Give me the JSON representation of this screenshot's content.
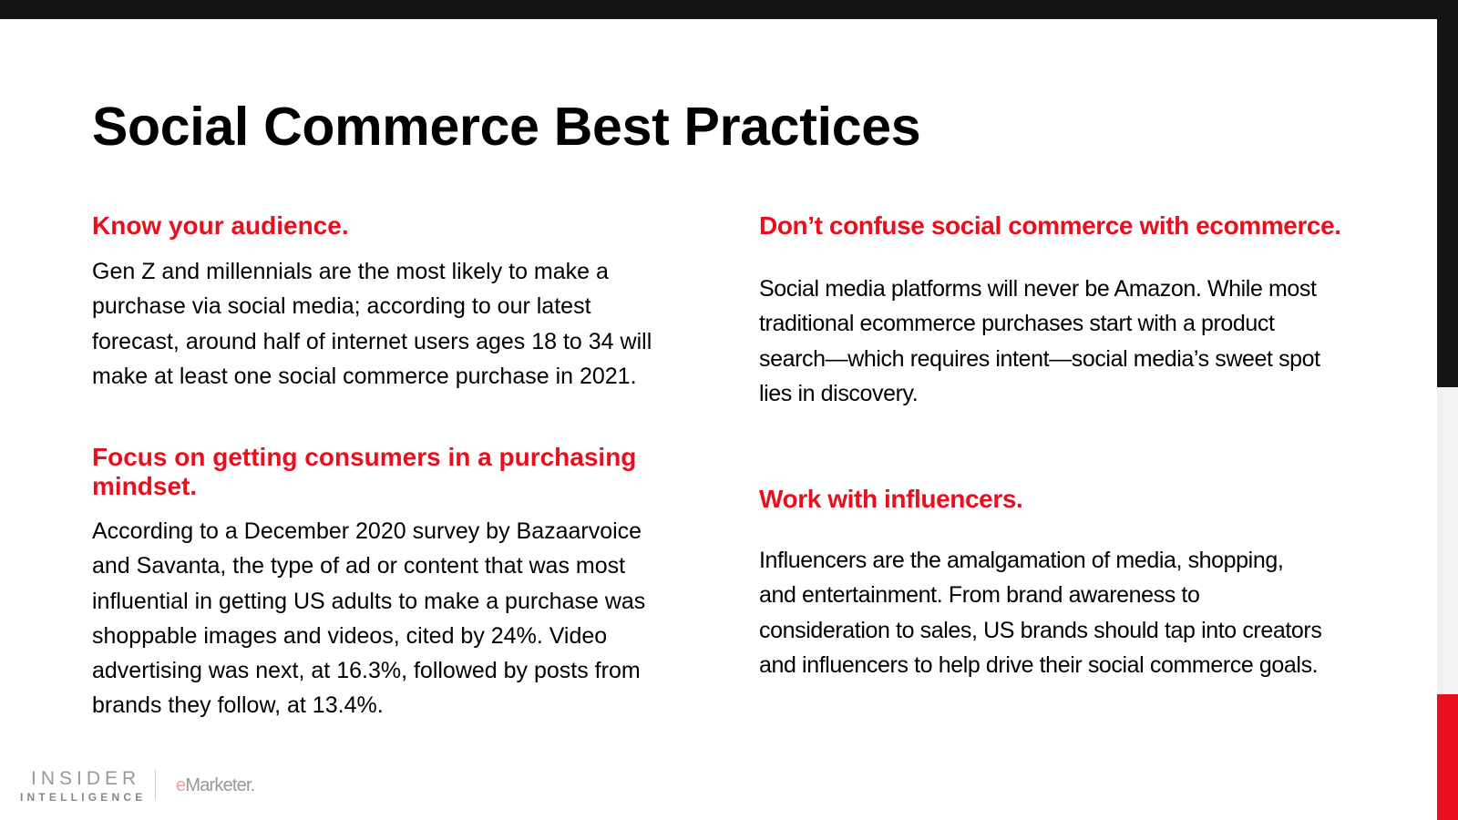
{
  "title": "Social Commerce Best Practices",
  "colors": {
    "accent": "#e8101e",
    "dark": "#141414"
  },
  "sections": [
    {
      "heading": [
        "Know your audience."
      ],
      "body": [
        "Gen Z and millennials are the most likely to make a",
        "purchase via social media; according to our latest",
        "forecast, around half of internet users ages 18 to 34 will",
        "make at least one social commerce purchase in 2021."
      ]
    },
    {
      "heading": [
        "Focus on getting consumers in a purchasing",
        "mindset."
      ],
      "body": [
        "According to a December 2020 survey by Bazaarvoice",
        "and Savanta, the type of ad or content that was most",
        "influential in getting US adults to make a purchase was",
        "shoppable images and videos, cited by 24%. Video",
        "advertising was next, at 16.3%, followed by posts from",
        "brands they follow, at 13.4%."
      ]
    },
    {
      "heading": [
        "Don’t confuse social commerce with ecommerce."
      ],
      "body": [
        "Social media platforms will never be Amazon. While most",
        "traditional ecommerce purchases start with a product",
        "search—which requires intent—social media’s sweet spot",
        "lies in discovery."
      ]
    },
    {
      "heading": [
        "Work with influencers."
      ],
      "body": [
        "Influencers are the amalgamation of media, shopping,",
        "and entertainment. From brand awareness to",
        "consideration to sales, US brands should tap into creators",
        "and influencers to help drive their social commerce goals."
      ]
    }
  ],
  "footer": {
    "logo_line1": "INSIDER",
    "logo_line2": "INTELLIGENCE",
    "brand_e": "e",
    "brand_rest": "Marketer",
    "brand_dot": "."
  }
}
